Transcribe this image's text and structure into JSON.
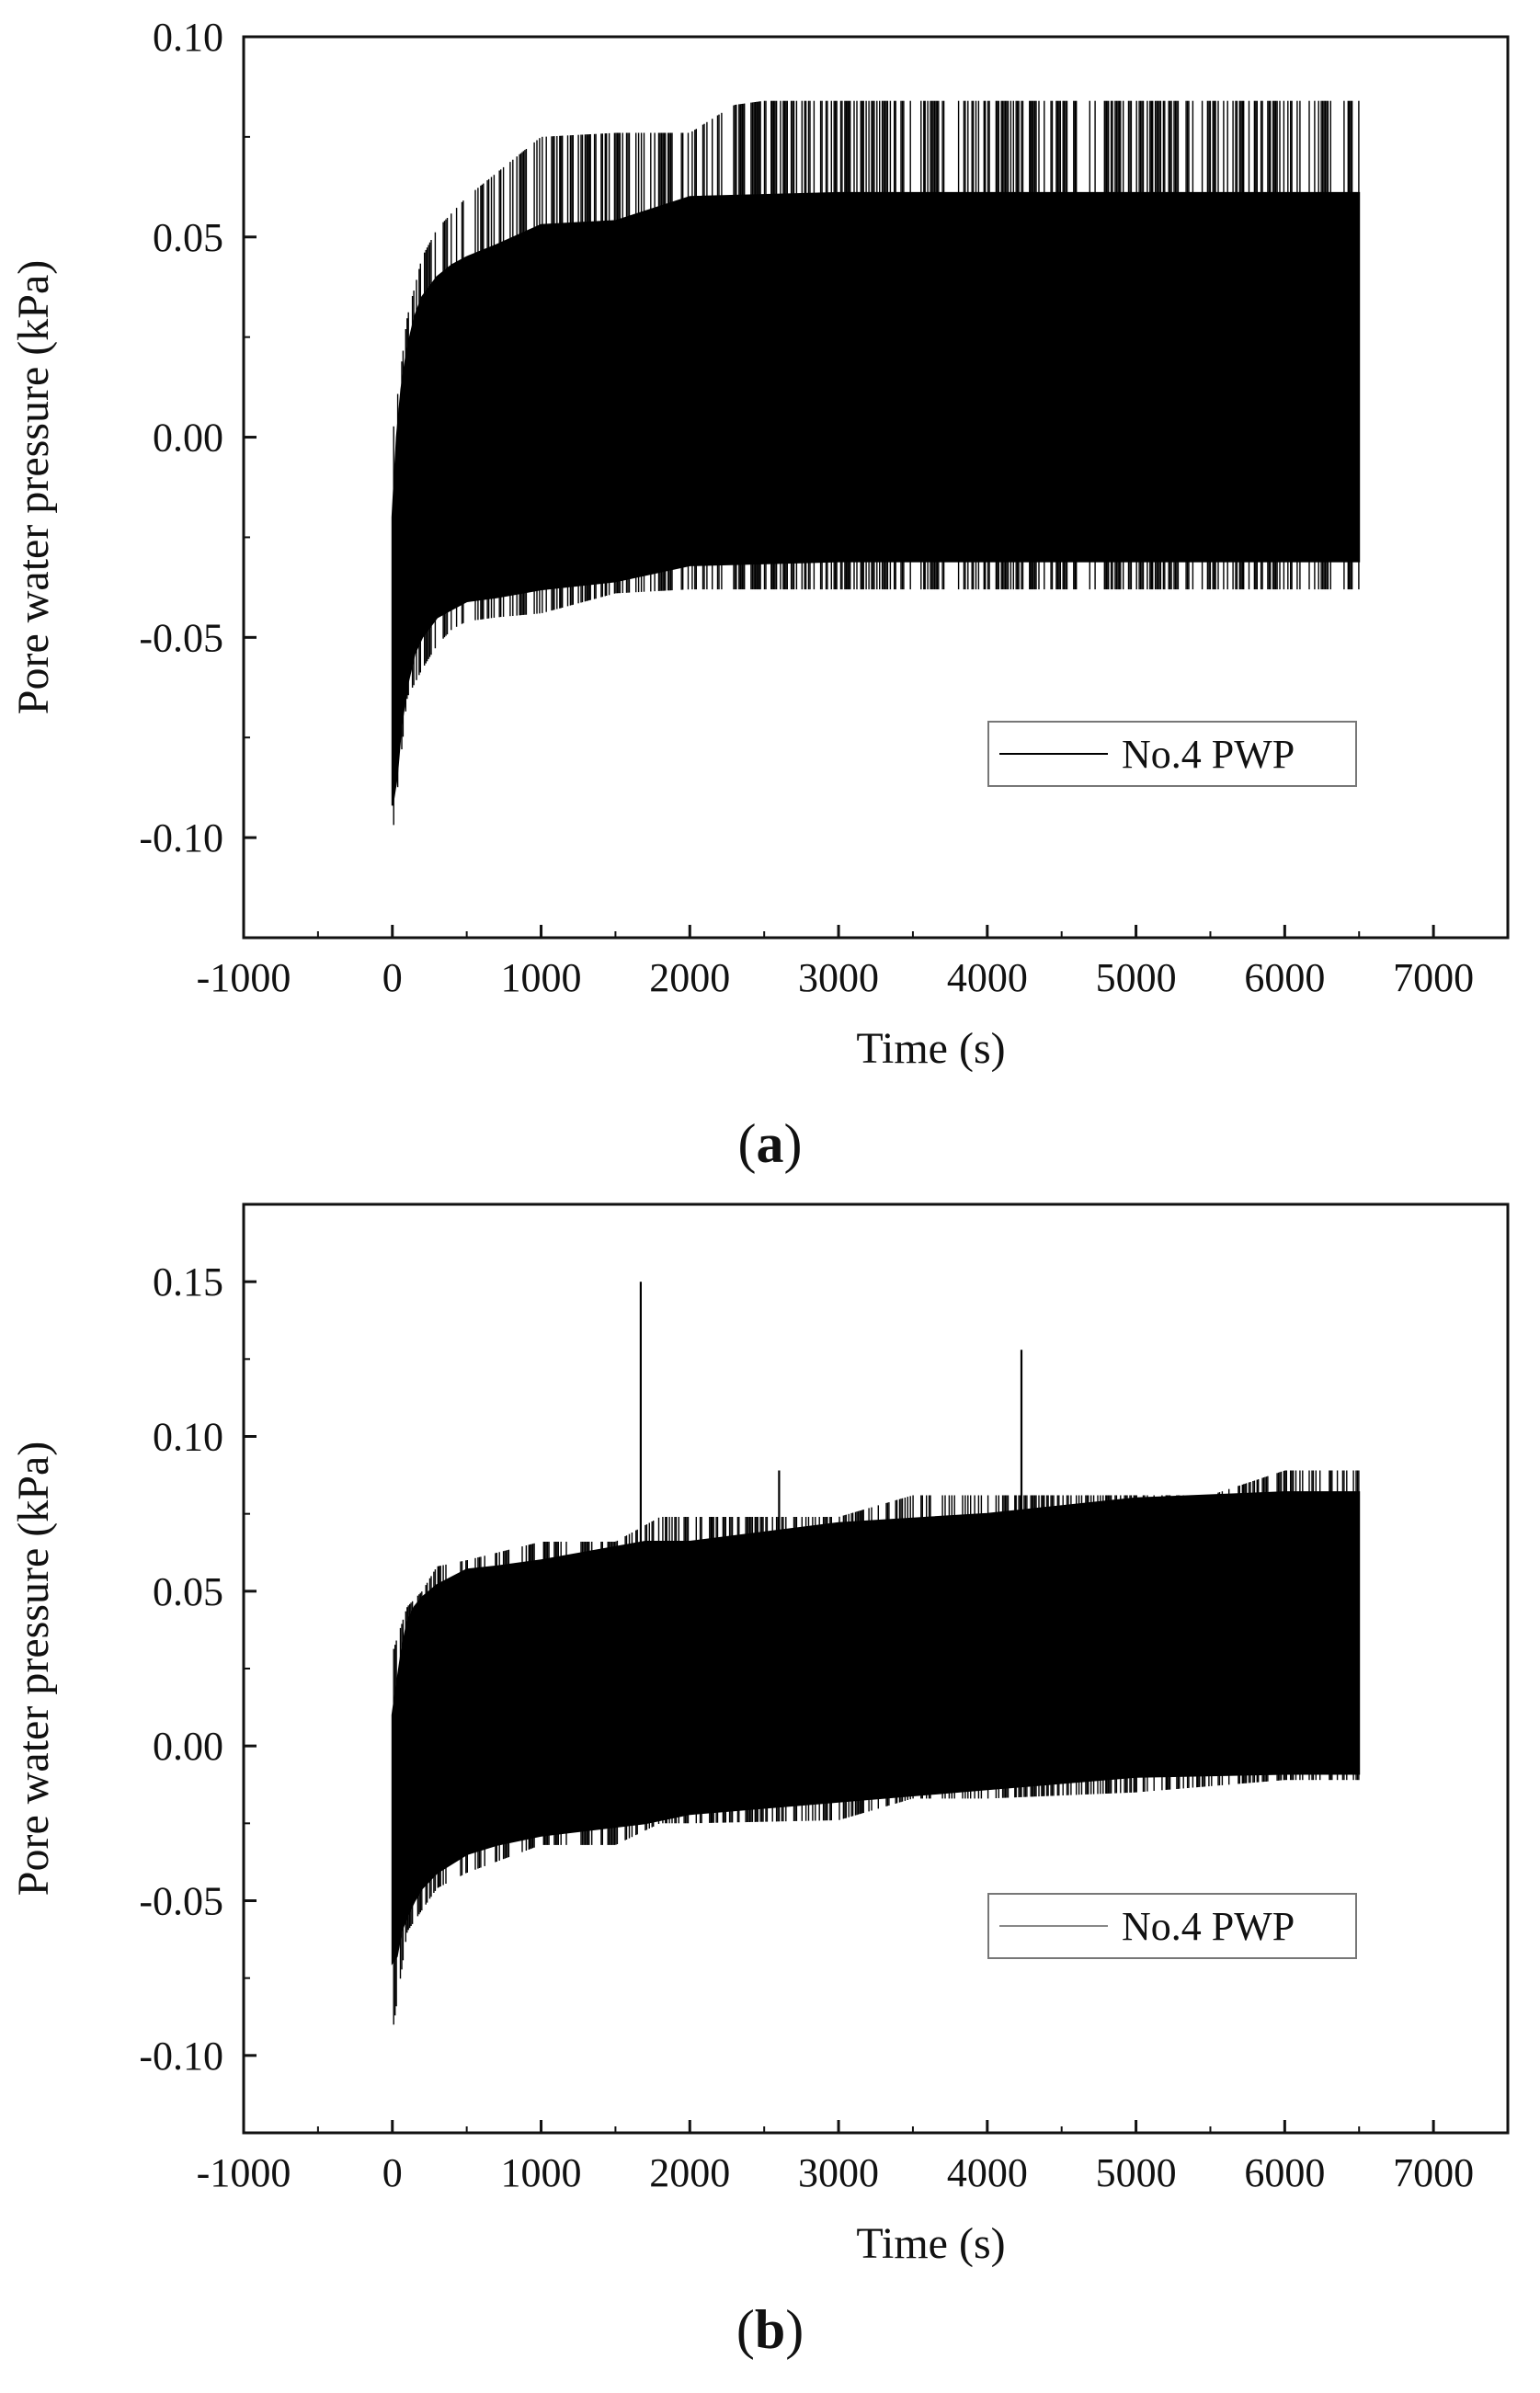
{
  "chart_data": [
    {
      "type": "line",
      "panel_label": "a",
      "xlabel": "Time (s)",
      "ylabel": "Pore water pressure (kPa)",
      "xlim": [
        -1000,
        7500
      ],
      "ylim": [
        -0.125,
        0.1
      ],
      "xticks": [
        -1000,
        0,
        1000,
        2000,
        3000,
        4000,
        5000,
        6000,
        7000
      ],
      "xtick_labels": [
        "-1000",
        "0",
        "1000",
        "2000",
        "3000",
        "4000",
        "5000",
        "6000",
        "7000"
      ],
      "yticks": [
        -0.1,
        -0.05,
        0.0,
        0.05,
        0.1
      ],
      "ytick_labels": [
        "-0.10",
        "-0.05",
        "0.00",
        "0.05",
        "0.10"
      ],
      "grid": false,
      "legend_position": "lower-right",
      "series": [
        {
          "name": "No.4 PWP",
          "color": "#000000",
          "band_envelope": {
            "x": [
              0,
              30,
              60,
              100,
              150,
              200,
              300,
              400,
              500,
              700,
              1000,
              1500,
              2000,
              3000,
              4000,
              5000,
              6000,
              6500
            ],
            "upper": [
              -0.02,
              0.0,
              0.012,
              0.022,
              0.03,
              0.035,
              0.04,
              0.043,
              0.045,
              0.048,
              0.053,
              0.054,
              0.06,
              0.061,
              0.061,
              0.061,
              0.061,
              0.061
            ],
            "lower": [
              -0.092,
              -0.085,
              -0.072,
              -0.062,
              -0.054,
              -0.05,
              -0.045,
              -0.043,
              -0.041,
              -0.04,
              -0.038,
              -0.036,
              -0.032,
              -0.031,
              -0.031,
              -0.031,
              -0.031,
              -0.031
            ]
          },
          "spike_envelope": {
            "x": [
              0,
              100,
              200,
              300,
              400,
              500,
              700,
              1000,
              1500,
              2000,
              2300,
              2500,
              3000,
              4000,
              5000,
              6000,
              6500
            ],
            "upper": [
              0.0,
              0.03,
              0.045,
              0.052,
              0.056,
              0.06,
              0.066,
              0.075,
              0.076,
              0.076,
              0.083,
              0.084,
              0.084,
              0.084,
              0.084,
              0.084,
              0.084
            ],
            "lower": [
              -0.1,
              -0.065,
              -0.058,
              -0.052,
              -0.048,
              -0.046,
              -0.045,
              -0.044,
              -0.039,
              -0.038,
              -0.038,
              -0.038,
              -0.038,
              -0.038,
              -0.038,
              -0.038,
              -0.038
            ]
          }
        }
      ]
    },
    {
      "type": "line",
      "panel_label": "b",
      "xlabel": "Time (s)",
      "ylabel": "Pore water pressure (kPa)",
      "xlim": [
        -1000,
        7500
      ],
      "ylim": [
        -0.125,
        0.175
      ],
      "xticks": [
        -1000,
        0,
        1000,
        2000,
        3000,
        4000,
        5000,
        6000,
        7000
      ],
      "xtick_labels": [
        "-1000",
        "0",
        "1000",
        "2000",
        "3000",
        "4000",
        "5000",
        "6000",
        "7000"
      ],
      "yticks": [
        -0.1,
        -0.05,
        0.0,
        0.05,
        0.1,
        0.15
      ],
      "ytick_labels": [
        "-0.10",
        "-0.05",
        "0.00",
        "0.05",
        "0.10",
        "0.15"
      ],
      "grid": false,
      "legend_position": "lower-right",
      "series": [
        {
          "name": "No.4 PWP",
          "color": "#000000",
          "legend_color": "#888888",
          "band_envelope": {
            "x": [
              0,
              30,
              60,
              100,
              150,
              200,
              300,
              500,
              700,
              1000,
              1700,
              2000,
              3000,
              4000,
              5000,
              6000,
              6500
            ],
            "upper": [
              0.01,
              0.02,
              0.03,
              0.04,
              0.045,
              0.048,
              0.052,
              0.057,
              0.058,
              0.06,
              0.066,
              0.066,
              0.072,
              0.075,
              0.08,
              0.082,
              0.082
            ],
            "lower": [
              -0.07,
              -0.068,
              -0.06,
              -0.055,
              -0.05,
              -0.046,
              -0.041,
              -0.035,
              -0.032,
              -0.029,
              -0.025,
              -0.022,
              -0.018,
              -0.014,
              -0.01,
              -0.009,
              -0.009
            ]
          },
          "spike_envelope": {
            "x": [
              0,
              100,
              200,
              300,
              500,
              1000,
              1500,
              1800,
              2000,
              3000,
              3500,
              4000,
              5000,
              5500,
              6000,
              6500
            ],
            "upper": [
              0.03,
              0.045,
              0.05,
              0.058,
              0.06,
              0.066,
              0.066,
              0.074,
              0.074,
              0.074,
              0.081,
              0.081,
              0.081,
              0.081,
              0.089,
              0.089
            ],
            "lower": [
              -0.093,
              -0.06,
              -0.053,
              -0.046,
              -0.041,
              -0.032,
              -0.032,
              -0.025,
              -0.025,
              -0.024,
              -0.017,
              -0.017,
              -0.015,
              -0.013,
              -0.011,
              -0.011
            ]
          },
          "isolated_spikes": [
            {
              "x": 1670,
              "y": 0.15
            },
            {
              "x": 4230,
              "y": 0.128
            },
            {
              "x": 2600,
              "y": 0.089
            }
          ]
        }
      ]
    }
  ]
}
